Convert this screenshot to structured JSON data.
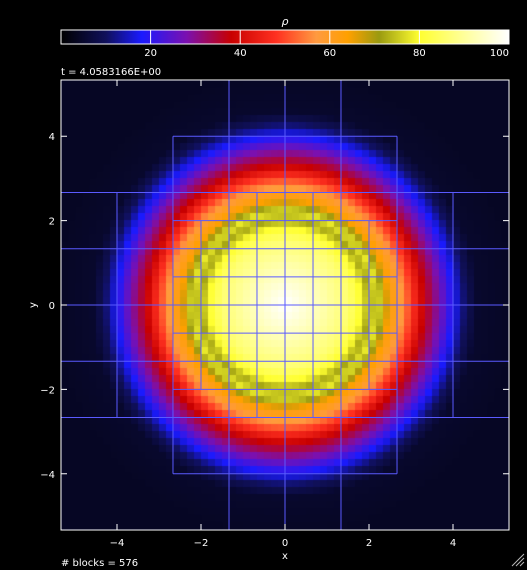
{
  "chart_data": {
    "type": "heatmap",
    "colorbar": {
      "label": "ρ",
      "range": [
        0,
        100
      ],
      "ticks": [
        20,
        40,
        60,
        80,
        100
      ],
      "colormap": [
        {
          "v": 0,
          "c": "#000000"
        },
        {
          "v": 10,
          "c": "#10105a"
        },
        {
          "v": 18,
          "c": "#1a1aff"
        },
        {
          "v": 28,
          "c": "#7a10b0"
        },
        {
          "v": 38,
          "c": "#c80000"
        },
        {
          "v": 48,
          "c": "#ff3020"
        },
        {
          "v": 57,
          "c": "#ff9a40"
        },
        {
          "v": 64,
          "c": "#ffa000"
        },
        {
          "v": 71,
          "c": "#9a9a10"
        },
        {
          "v": 80,
          "c": "#ffff30"
        },
        {
          "v": 92,
          "c": "#ffffb0"
        },
        {
          "v": 100,
          "c": "#ffffff"
        }
      ]
    },
    "time_label": "t = 4.0583166E+00",
    "footer_label": "# blocks = 576",
    "xlabel": "x",
    "ylabel": "y",
    "xlim": [
      -5.333,
      5.333
    ],
    "ylim": [
      -5.333,
      5.333
    ],
    "x_ticks": [
      -4,
      -2,
      0,
      2,
      4
    ],
    "y_ticks": [
      -4,
      -2,
      0,
      2,
      4
    ],
    "x_tick_labels": [
      "−4",
      "−2",
      "0",
      "2",
      "4"
    ],
    "y_tick_labels": [
      "−4",
      "−2",
      "0",
      "2",
      "4"
    ],
    "field": {
      "center": [
        0,
        0
      ],
      "profile": [
        {
          "r": 0.0,
          "v": 100
        },
        {
          "r": 1.5,
          "v": 86
        },
        {
          "r": 1.8,
          "v": 80
        },
        {
          "r": 2.0,
          "v": 72
        },
        {
          "r": 2.2,
          "v": 78
        },
        {
          "r": 2.45,
          "v": 65
        },
        {
          "r": 2.75,
          "v": 58
        },
        {
          "r": 3.05,
          "v": 47
        },
        {
          "r": 3.3,
          "v": 38
        },
        {
          "r": 3.7,
          "v": 27
        },
        {
          "r": 4.0,
          "v": 18
        },
        {
          "r": 4.3,
          "v": 10
        },
        {
          "r": 4.6,
          "v": 5
        },
        {
          "r": 5.5,
          "v": 4
        }
      ]
    },
    "amr_blocks": {
      "line_color": "#5a5aff",
      "segments": [
        {
          "orient": "v",
          "at": -2.667,
          "from": -4,
          "to": 4
        },
        {
          "orient": "v",
          "at": 2.667,
          "from": -4,
          "to": 4
        },
        {
          "orient": "v",
          "at": -1.333,
          "from": -5.333,
          "to": 5.333
        },
        {
          "orient": "v",
          "at": 0,
          "from": -5.333,
          "to": 5.333
        },
        {
          "orient": "v",
          "at": 1.333,
          "from": -5.333,
          "to": 5.333
        },
        {
          "orient": "h",
          "at": -2.667,
          "from": -5.333,
          "to": 5.333
        },
        {
          "orient": "h",
          "at": 2.667,
          "from": -5.333,
          "to": 5.333
        },
        {
          "orient": "h",
          "at": -4,
          "from": -2.667,
          "to": 2.667
        },
        {
          "orient": "h",
          "at": 4,
          "from": -2.667,
          "to": 2.667
        },
        {
          "orient": "h",
          "at": -1.333,
          "from": -5.333,
          "to": 5.333
        },
        {
          "orient": "h",
          "at": 1.333,
          "from": -5.333,
          "to": 5.333
        },
        {
          "orient": "h",
          "at": 0,
          "from": -5.333,
          "to": 5.333
        },
        {
          "orient": "v",
          "at": -4,
          "from": -2.667,
          "to": 2.667
        },
        {
          "orient": "v",
          "at": 4,
          "from": -2.667,
          "to": 2.667
        },
        {
          "orient": "v",
          "at": -2,
          "from": -2,
          "to": 2
        },
        {
          "orient": "v",
          "at": -0.667,
          "from": -2.667,
          "to": 2.667
        },
        {
          "orient": "v",
          "at": 0.667,
          "from": -2.667,
          "to": 2.667
        },
        {
          "orient": "v",
          "at": 2,
          "from": -2,
          "to": 2
        },
        {
          "orient": "h",
          "at": -2,
          "from": -2.667,
          "to": 2.667
        },
        {
          "orient": "h",
          "at": -0.667,
          "from": -2.667,
          "to": 2.667
        },
        {
          "orient": "h",
          "at": 0.667,
          "from": -2.667,
          "to": 2.667
        },
        {
          "orient": "h",
          "at": 2,
          "from": -2.667,
          "to": 2.667
        }
      ]
    }
  }
}
